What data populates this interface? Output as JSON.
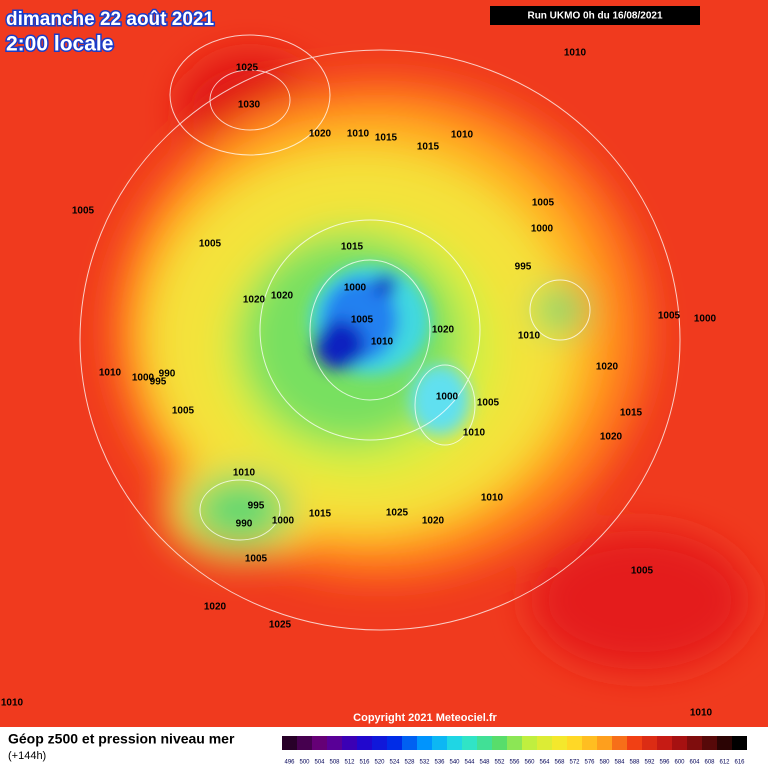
{
  "header": {
    "date": "dimanche 22 août 2021",
    "time": "2:00 locale",
    "run": "Run UKMO 0h du 16/08/2021"
  },
  "isobar_labels": [
    "1025",
    "1030",
    "1010",
    "1020",
    "1010",
    "1015",
    "1010",
    "1015",
    "1005",
    "1005",
    "1005",
    "1000",
    "995",
    "1015",
    "1000",
    "1020",
    "1020",
    "1005",
    "1010",
    "1020",
    "1010",
    "1005",
    "1000",
    "1010",
    "1000",
    "990",
    "995",
    "1005",
    "1020",
    "1000",
    "1005",
    "1015",
    "1010",
    "1020",
    "1010",
    "1010",
    "995",
    "990",
    "1000",
    "1015",
    "1025",
    "1020",
    "1005",
    "1005",
    "1020",
    "1025",
    "1010",
    "1010"
  ],
  "footer": {
    "copyright": "Copyright 2021 Meteociel.fr",
    "legend_title": "Géop z500 et pression niveau mer",
    "lead_time": "(+144h)",
    "scale": [
      "496",
      "500",
      "504",
      "508",
      "512",
      "516",
      "520",
      "524",
      "528",
      "532",
      "536",
      "540",
      "544",
      "548",
      "552",
      "556",
      "560",
      "564",
      "568",
      "572",
      "576",
      "580",
      "584",
      "588",
      "592",
      "596",
      "600",
      "604",
      "608",
      "612",
      "616"
    ]
  }
}
